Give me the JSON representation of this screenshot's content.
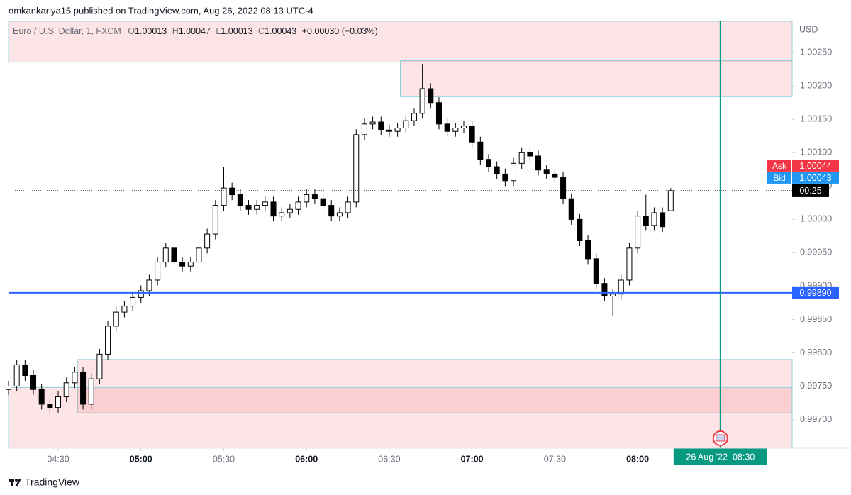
{
  "header": {
    "text": "omkankariya15 published on TradingView.com, Aug 26, 2022 08:13 UTC-4"
  },
  "footer": {
    "brand": "TradingView"
  },
  "chart_data": {
    "type": "candlestick",
    "symbol": "Euro / U.S. Dollar, 1, FXCM",
    "ohlc_keys": [
      "O",
      "H",
      "L",
      "C"
    ],
    "change": "+0.00030 (+0.03%)",
    "currency": "USD",
    "x": [
      "04:12",
      "04:15",
      "04:18",
      "04:21",
      "04:24",
      "04:27",
      "04:30",
      "04:33",
      "04:36",
      "04:39",
      "04:42",
      "04:45",
      "04:48",
      "04:51",
      "04:54",
      "04:57",
      "05:00",
      "05:03",
      "05:06",
      "05:09",
      "05:12",
      "05:15",
      "05:18",
      "05:21",
      "05:24",
      "05:27",
      "05:30",
      "05:33",
      "05:36",
      "05:39",
      "05:42",
      "05:45",
      "05:48",
      "05:51",
      "05:54",
      "05:57",
      "06:00",
      "06:03",
      "06:06",
      "06:09",
      "06:12",
      "06:15",
      "06:18",
      "06:21",
      "06:24",
      "06:27",
      "06:30",
      "06:33",
      "06:36",
      "06:39",
      "06:42",
      "06:45",
      "06:48",
      "06:51",
      "06:54",
      "06:57",
      "07:00",
      "07:03",
      "07:06",
      "07:09",
      "07:12",
      "07:15",
      "07:18",
      "07:21",
      "07:24",
      "07:27",
      "07:30",
      "07:33",
      "07:36",
      "07:39",
      "07:42",
      "07:45",
      "07:48",
      "07:51",
      "07:54",
      "07:57",
      "08:00",
      "08:03",
      "08:06",
      "08:09",
      "08:12"
    ],
    "open": [
      0.99745,
      0.9975,
      0.99782,
      0.99766,
      0.99745,
      0.99723,
      0.99718,
      0.99734,
      0.99755,
      0.99771,
      0.99723,
      0.99761,
      0.99798,
      0.9984,
      0.99861,
      0.9987,
      0.99883,
      0.99893,
      0.99909,
      0.99936,
      0.99957,
      0.99936,
      0.9993,
      0.99936,
      0.99957,
      0.99978,
      1.00021,
      1.00047,
      1.00037,
      1.00021,
      1.00015,
      1.00021,
      1.00026,
      1.00005,
      1.0001,
      1.00015,
      1.00026,
      1.00037,
      1.00031,
      1.00021,
      1.00005,
      1.0001,
      1.00026,
      1.00127,
      1.00143,
      1.00146,
      1.00134,
      1.00132,
      1.00137,
      1.00148,
      1.00159,
      1.00196,
      1.00175,
      1.00143,
      1.00132,
      1.00137,
      1.0014,
      1.00116,
      1.0009,
      1.00079,
      1.00068,
      1.00058,
      1.00084,
      1.001,
      1.00095,
      1.00074,
      1.00068,
      1.00063,
      1.00031,
      1.0,
      0.99968,
      0.99941,
      0.99904,
      0.99885,
      0.99888,
      0.99909,
      0.99957,
      1.00005,
      0.99991,
      1.0001,
      1.00013
    ],
    "high": [
      0.99758,
      0.9979,
      0.9979,
      0.99774,
      0.99753,
      0.99731,
      0.99742,
      0.99763,
      0.99779,
      0.99779,
      0.99769,
      0.99806,
      0.99848,
      0.99869,
      0.99878,
      0.99891,
      0.99901,
      0.99917,
      0.99944,
      0.99965,
      0.99965,
      0.99944,
      0.99944,
      0.99965,
      0.99986,
      1.00029,
      1.00078,
      1.00055,
      1.00045,
      1.00029,
      1.00029,
      1.00034,
      1.00034,
      1.00018,
      1.00023,
      1.00034,
      1.00045,
      1.00045,
      1.00039,
      1.00029,
      1.00018,
      1.00034,
      1.00135,
      1.00151,
      1.00154,
      1.00154,
      1.00142,
      1.00145,
      1.00156,
      1.00167,
      1.00233,
      1.00204,
      1.00183,
      1.00151,
      1.00145,
      1.00148,
      1.00148,
      1.00124,
      1.00098,
      1.00087,
      1.00076,
      1.00092,
      1.00108,
      1.00108,
      1.00103,
      1.00082,
      1.00076,
      1.00071,
      1.00039,
      1.00008,
      0.99976,
      0.99949,
      0.99912,
      0.99896,
      0.99917,
      0.99965,
      1.00013,
      1.00037,
      1.00018,
      1.00018,
      1.00047
    ],
    "low": [
      0.99737,
      0.99742,
      0.99758,
      0.99737,
      0.99715,
      0.9971,
      0.9971,
      0.99726,
      0.99747,
      0.99715,
      0.99715,
      0.99753,
      0.9979,
      0.99832,
      0.99853,
      0.99862,
      0.99875,
      0.99885,
      0.99901,
      0.99928,
      0.99928,
      0.99922,
      0.99922,
      0.99928,
      0.99949,
      0.9997,
      1.00013,
      1.00029,
      1.00013,
      1.00007,
      1.00007,
      1.00013,
      0.99997,
      0.99997,
      1.00002,
      1.00007,
      1.00018,
      1.00023,
      1.00013,
      0.99997,
      0.99997,
      1.00002,
      1.00018,
      1.00119,
      1.00135,
      1.00126,
      1.00124,
      1.00124,
      1.00129,
      1.0014,
      1.00151,
      1.00167,
      1.00135,
      1.00124,
      1.00124,
      1.00129,
      1.00108,
      1.00082,
      1.00071,
      1.0006,
      1.0005,
      1.0005,
      1.00076,
      1.00087,
      1.00066,
      1.0006,
      1.00055,
      1.00023,
      0.99992,
      0.9996,
      0.99933,
      0.99896,
      0.99877,
      0.99855,
      0.9988,
      0.99901,
      0.99949,
      0.99983,
      0.99983,
      0.99981,
      1.00013
    ],
    "close": [
      0.9975,
      0.99782,
      0.99766,
      0.99745,
      0.99723,
      0.99718,
      0.99734,
      0.99755,
      0.99771,
      0.99723,
      0.99761,
      0.99798,
      0.9984,
      0.99861,
      0.9987,
      0.99883,
      0.99893,
      0.99909,
      0.99936,
      0.99957,
      0.99936,
      0.9993,
      0.99936,
      0.99957,
      0.99978,
      1.00021,
      1.00047,
      1.00037,
      1.00021,
      1.00015,
      1.00021,
      1.00026,
      1.00005,
      1.0001,
      1.00015,
      1.00026,
      1.00037,
      1.00031,
      1.00021,
      1.00005,
      1.0001,
      1.00026,
      1.00127,
      1.00143,
      1.00146,
      1.00134,
      1.00132,
      1.00137,
      1.00148,
      1.00159,
      1.00196,
      1.00175,
      1.00143,
      1.00132,
      1.00137,
      1.0014,
      1.00116,
      1.0009,
      1.00079,
      1.00068,
      1.00058,
      1.00084,
      1.001,
      1.00095,
      1.00074,
      1.00068,
      1.00063,
      1.00031,
      1.0,
      0.99968,
      0.99941,
      0.99904,
      0.99885,
      0.99888,
      0.99909,
      0.99957,
      1.00005,
      0.99991,
      1.0001,
      0.99989,
      1.00043
    ],
    "xlim": [
      "04:12",
      "08:56"
    ],
    "xticks": [
      "04:30",
      "05:00",
      "05:30",
      "06:00",
      "06:30",
      "07:00",
      "07:30",
      "08:00"
    ],
    "ylim": [
      0.99657,
      1.00297
    ],
    "yticks": [
      {
        "value": 0.997,
        "label": "0.99700"
      },
      {
        "value": 0.9975,
        "label": "0.99750"
      },
      {
        "value": 0.998,
        "label": "0.99800"
      },
      {
        "value": 0.9985,
        "label": "0.99850"
      },
      {
        "value": 0.999,
        "label": "0.99900"
      },
      {
        "value": 0.9995,
        "label": "0.99950"
      },
      {
        "value": 1.0,
        "label": "1.00000"
      },
      {
        "value": 1.0005,
        "label": "1.00050"
      },
      {
        "value": 1.001,
        "label": "1.00100"
      },
      {
        "value": 1.0015,
        "label": "1.00150"
      },
      {
        "value": 1.002,
        "label": "1.00200"
      },
      {
        "value": 1.0025,
        "label": "1.00250"
      }
    ],
    "zones": [
      {
        "start": "04:12",
        "top": 1.00297,
        "bottom": 1.00236
      },
      {
        "start": "06:34",
        "top": 1.00238,
        "bottom": 1.00184
      },
      {
        "start": "04:37",
        "top": 0.9979,
        "bottom": 0.9971
      },
      {
        "start": "04:12",
        "top": 0.99748,
        "bottom": 0.99657
      }
    ],
    "hline": {
      "value": 0.9989,
      "label": "0.99890",
      "color": "#2962ff"
    },
    "vline": {
      "time": "08:30",
      "label": "26 Aug '22  08:30",
      "color": "#089981"
    },
    "ask": {
      "name": "Ask",
      "value": 1.00044,
      "color": "#f23645"
    },
    "bid": {
      "name": "Bid",
      "value": 1.00043,
      "color": "#2196f3"
    },
    "countdown": "00:25"
  }
}
